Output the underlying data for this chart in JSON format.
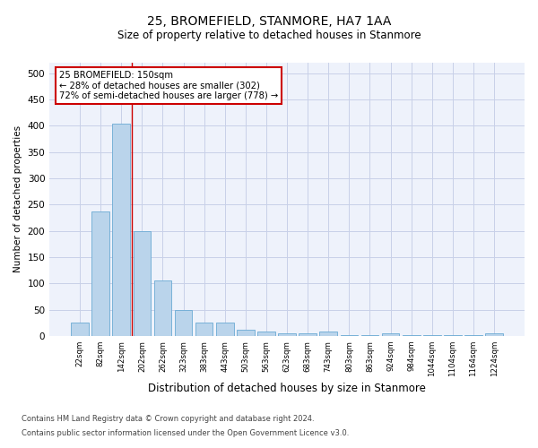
{
  "title": "25, BROMEFIELD, STANMORE, HA7 1AA",
  "subtitle": "Size of property relative to detached houses in Stanmore",
  "xlabel": "Distribution of detached houses by size in Stanmore",
  "ylabel": "Number of detached properties",
  "bin_labels": [
    "22sqm",
    "82sqm",
    "142sqm",
    "202sqm",
    "262sqm",
    "323sqm",
    "383sqm",
    "443sqm",
    "503sqm",
    "563sqm",
    "623sqm",
    "683sqm",
    "743sqm",
    "803sqm",
    "863sqm",
    "924sqm",
    "984sqm",
    "1044sqm",
    "1104sqm",
    "1164sqm",
    "1224sqm"
  ],
  "bar_values": [
    25,
    237,
    404,
    200,
    105,
    50,
    25,
    25,
    12,
    8,
    5,
    5,
    8,
    2,
    2,
    5,
    2,
    1,
    1,
    1,
    5
  ],
  "bar_color": "#bad4eb",
  "bar_edge_color": "#6aaad4",
  "annotation_box_text": "25 BROMEFIELD: 150sqm\n← 28% of detached houses are smaller (302)\n72% of semi-detached houses are larger (778) →",
  "annotation_box_color": "#ffffff",
  "annotation_box_edge_color": "#cc0000",
  "red_line_bin": 2,
  "ylim": [
    0,
    520
  ],
  "yticks": [
    0,
    50,
    100,
    150,
    200,
    250,
    300,
    350,
    400,
    450,
    500
  ],
  "footer_line1": "Contains HM Land Registry data © Crown copyright and database right 2024.",
  "footer_line2": "Contains public sector information licensed under the Open Government Licence v3.0.",
  "bg_color": "#eef2fb",
  "grid_color": "#c8d0e8"
}
